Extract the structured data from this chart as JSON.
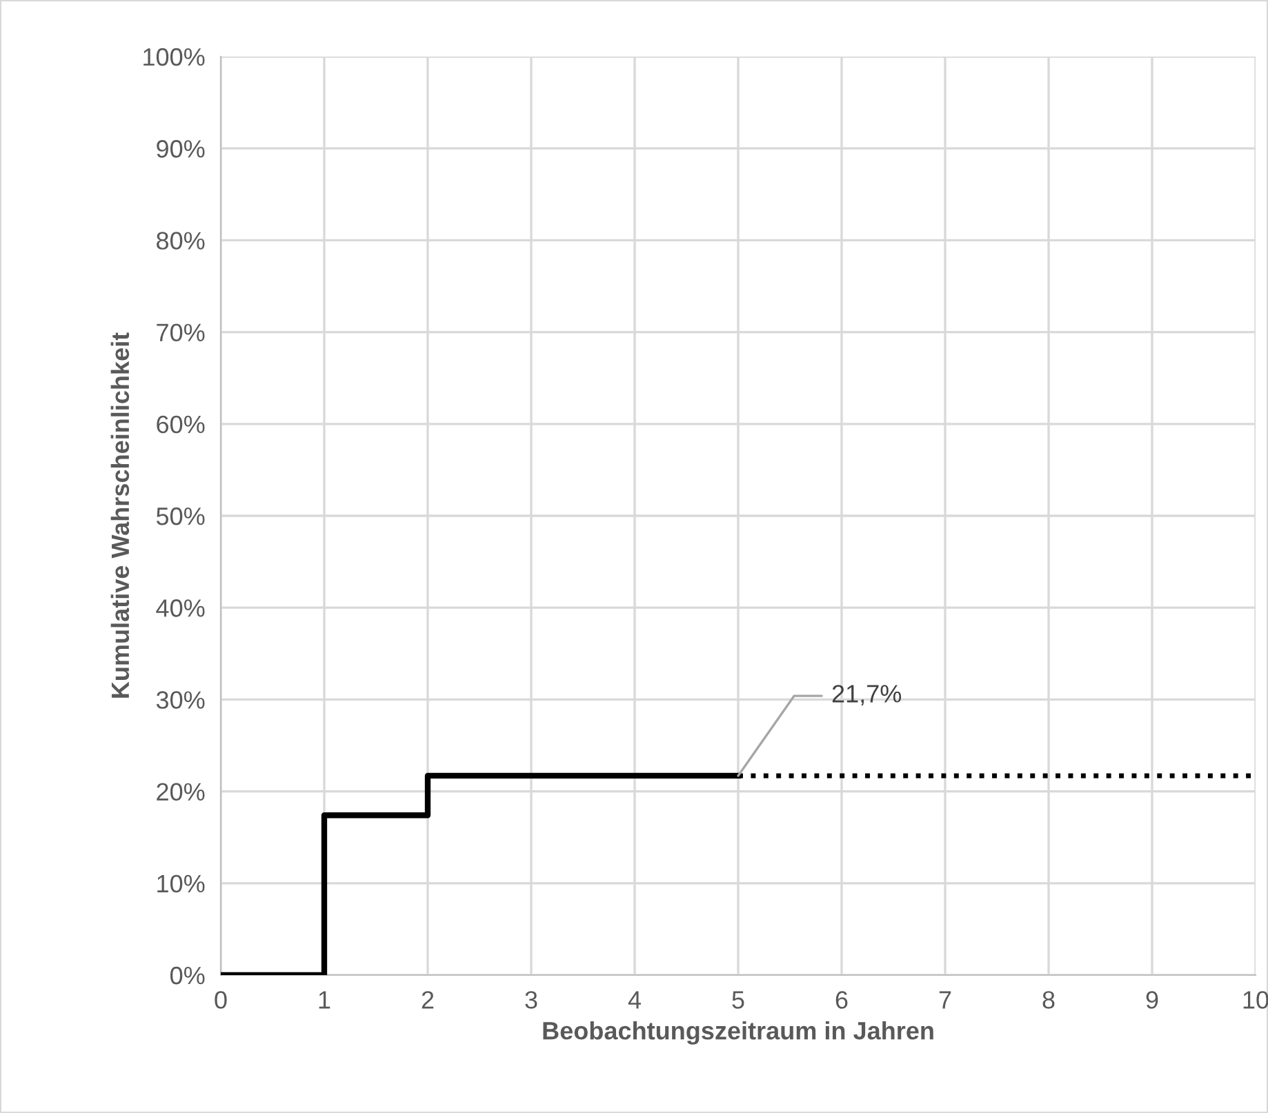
{
  "chart_data": {
    "type": "step",
    "xlabel": "Beobachtungszeitraum in Jahren",
    "ylabel": "Kumulative Wahrscheinlichkeit",
    "series": [
      {
        "x": [
          0,
          1,
          2,
          5
        ],
        "values": [
          0,
          17.4,
          21.7,
          21.7
        ],
        "color": "#000000",
        "line_style": "solid"
      },
      {
        "type": "line",
        "x": [
          5,
          10
        ],
        "values": [
          21.7,
          21.7
        ],
        "color": "#000000",
        "line_style": "dotted"
      }
    ],
    "annotations": [
      {
        "text": "21,7%",
        "x": 5,
        "y": 21.7
      }
    ],
    "xlim": [
      0,
      10
    ],
    "xticks": [
      0,
      1,
      2,
      3,
      4,
      5,
      6,
      7,
      8,
      9,
      10
    ],
    "ylim": [
      0,
      100
    ],
    "yticks": [
      {
        "value": 0,
        "label": "0%"
      },
      {
        "value": 10,
        "label": "10%"
      },
      {
        "value": 20,
        "label": "20%"
      },
      {
        "value": 30,
        "label": "30%"
      },
      {
        "value": 40,
        "label": "40%"
      },
      {
        "value": 50,
        "label": "50%"
      },
      {
        "value": 60,
        "label": "60%"
      },
      {
        "value": 70,
        "label": "70%"
      },
      {
        "value": 80,
        "label": "80%"
      },
      {
        "value": 90,
        "label": "90%"
      },
      {
        "value": 100,
        "label": "100%"
      }
    ],
    "grid": true,
    "legend": false
  }
}
